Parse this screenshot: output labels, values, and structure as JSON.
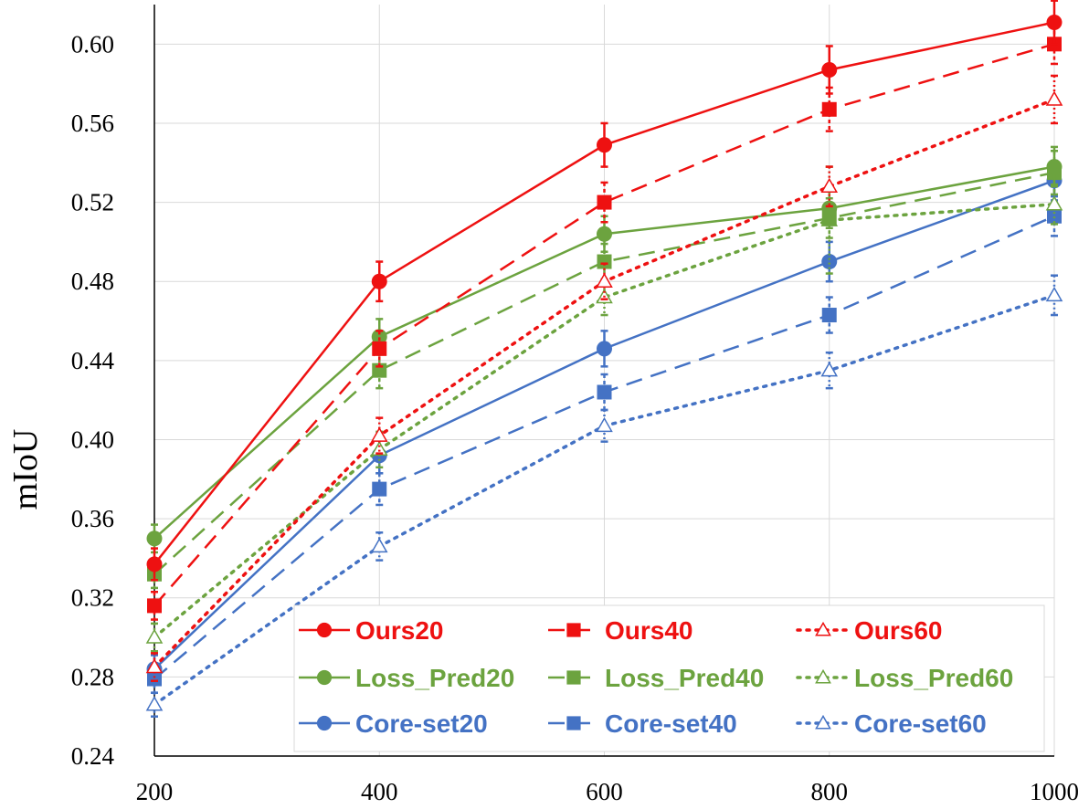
{
  "chart_data": {
    "type": "line",
    "title": "",
    "xlabel": "",
    "ylabel": "mIoU",
    "x": [
      200,
      400,
      600,
      800,
      1000
    ],
    "xlim": [
      200,
      1000
    ],
    "ylim": [
      0.24,
      0.62
    ],
    "yticks": [
      "0.24",
      "0.28",
      "0.32",
      "0.36",
      "0.40",
      "0.44",
      "0.48",
      "0.52",
      "0.56",
      "0.60"
    ],
    "xticks": [
      "200",
      "400",
      "600",
      "800",
      "1000"
    ],
    "grid": "both",
    "legend": "bottom-right",
    "colors": {
      "ours": "#ee1111",
      "loss_pred": "#6ca33f",
      "core_set": "#4472c4"
    },
    "series": [
      {
        "name": "Ours20",
        "group": "ours",
        "marker": "circle",
        "dash": "solid",
        "values": [
          0.337,
          0.48,
          0.549,
          0.587,
          0.611
        ],
        "err": [
          0.008,
          0.01,
          0.011,
          0.012,
          0.011
        ]
      },
      {
        "name": "Ours40",
        "group": "ours",
        "marker": "square",
        "dash": "dashed",
        "values": [
          0.316,
          0.446,
          0.52,
          0.567,
          0.6
        ],
        "err": [
          0.007,
          0.009,
          0.01,
          0.011,
          0.01
        ]
      },
      {
        "name": "Ours60",
        "group": "ours",
        "marker": "triangle",
        "dash": "dotted",
        "values": [
          0.285,
          0.402,
          0.48,
          0.528,
          0.572
        ],
        "err": [
          0.007,
          0.009,
          0.009,
          0.01,
          0.012
        ]
      },
      {
        "name": "Loss_Pred20",
        "group": "loss_pred",
        "marker": "circle",
        "dash": "solid",
        "values": [
          0.35,
          0.452,
          0.504,
          0.517,
          0.538
        ],
        "err": [
          0.007,
          0.009,
          0.009,
          0.01,
          0.01
        ]
      },
      {
        "name": "Loss_Pred40",
        "group": "loss_pred",
        "marker": "square",
        "dash": "dashed",
        "values": [
          0.332,
          0.435,
          0.49,
          0.512,
          0.535
        ],
        "err": [
          0.007,
          0.009,
          0.009,
          0.01,
          0.011
        ]
      },
      {
        "name": "Loss_Pred60",
        "group": "loss_pred",
        "marker": "triangle",
        "dash": "dotted",
        "values": [
          0.3,
          0.395,
          0.472,
          0.511,
          0.519
        ],
        "err": [
          0.007,
          0.009,
          0.009,
          0.027,
          0.01
        ]
      },
      {
        "name": "Core-set20",
        "group": "core_set",
        "marker": "circle",
        "dash": "solid",
        "values": [
          0.284,
          0.392,
          0.446,
          0.49,
          0.531
        ],
        "err": [
          0.007,
          0.009,
          0.009,
          0.01,
          0.01
        ]
      },
      {
        "name": "Core-set40",
        "group": "core_set",
        "marker": "square",
        "dash": "dashed",
        "values": [
          0.279,
          0.375,
          0.424,
          0.463,
          0.513
        ],
        "err": [
          0.007,
          0.008,
          0.009,
          0.009,
          0.01
        ]
      },
      {
        "name": "Core-set60",
        "group": "core_set",
        "marker": "triangle",
        "dash": "dotted",
        "values": [
          0.266,
          0.346,
          0.407,
          0.435,
          0.473
        ],
        "err": [
          0.006,
          0.007,
          0.008,
          0.009,
          0.01
        ]
      }
    ]
  }
}
